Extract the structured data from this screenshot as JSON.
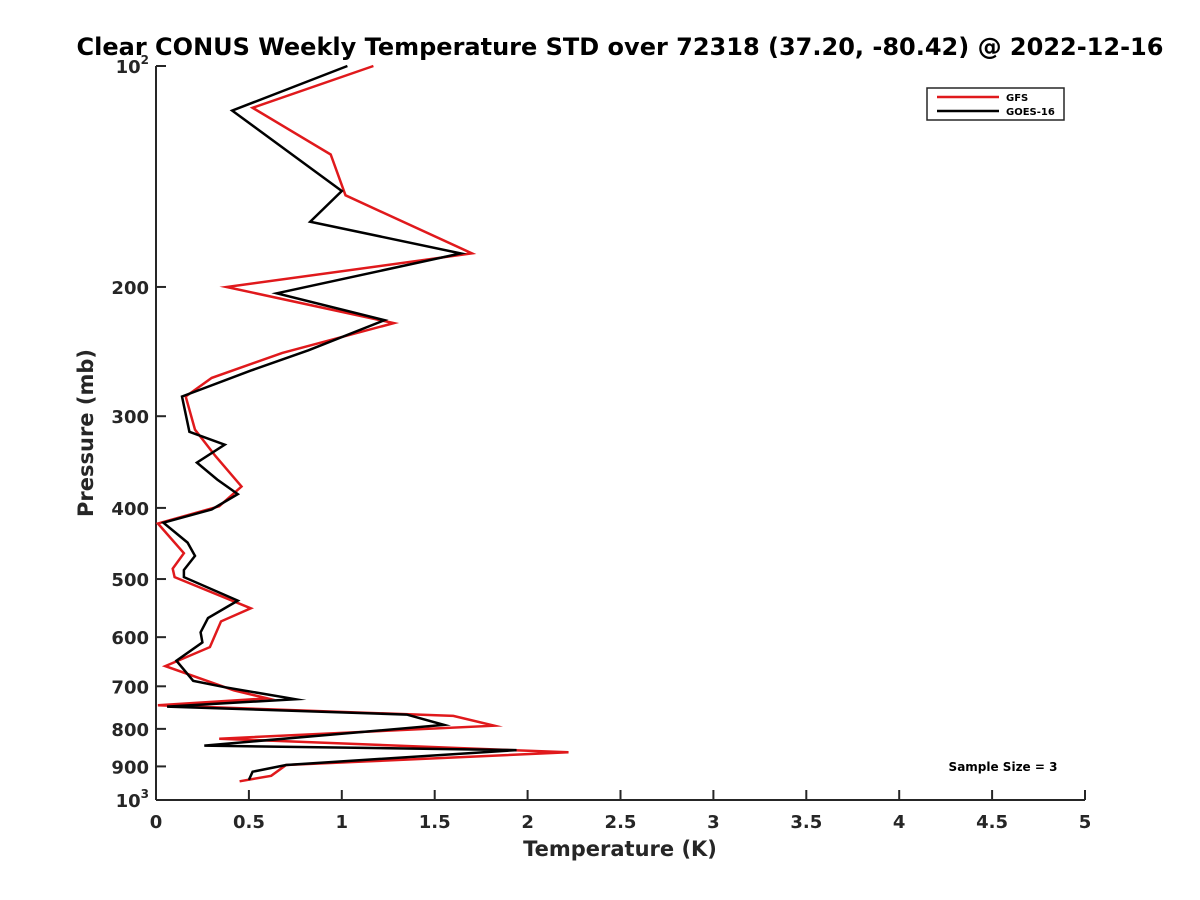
{
  "chart_data": {
    "type": "line",
    "title": "Clear CONUS Weekly Temperature STD over 72318 (37.20, -80.42) @ 2022-12-16",
    "xlabel": "Temperature (K)",
    "ylabel": "Pressure (mb)",
    "xlim": [
      0,
      5
    ],
    "ylim": [
      100,
      1000
    ],
    "y_scale": "log",
    "y_reversed": true,
    "grid": false,
    "x_ticks": [
      0,
      0.5,
      1,
      1.5,
      2,
      2.5,
      3,
      3.5,
      4,
      4.5,
      5
    ],
    "x_tick_labels": [
      "0",
      "0.5",
      "1",
      "1.5",
      "2",
      "2.5",
      "3",
      "3.5",
      "4",
      "4.5",
      "5"
    ],
    "y_ticks": [
      100,
      200,
      300,
      400,
      500,
      600,
      700,
      800,
      900,
      1000
    ],
    "y_tick_labels": [
      {
        "base": "10",
        "exp": "2"
      },
      {
        "base": "200",
        "exp": ""
      },
      {
        "base": "300",
        "exp": ""
      },
      {
        "base": "400",
        "exp": ""
      },
      {
        "base": "500",
        "exp": ""
      },
      {
        "base": "600",
        "exp": ""
      },
      {
        "base": "700",
        "exp": ""
      },
      {
        "base": "800",
        "exp": ""
      },
      {
        "base": "900",
        "exp": ""
      },
      {
        "base": "10",
        "exp": "3"
      }
    ],
    "legend": {
      "position": "top-right"
    },
    "annotation": "Sample Size = 3",
    "series": [
      {
        "name": "GFS",
        "color": "#e0191c",
        "points": [
          [
            1.17,
            100
          ],
          [
            0.52,
            114
          ],
          [
            0.94,
            132
          ],
          [
            1.02,
            150
          ],
          [
            1.7,
            180
          ],
          [
            0.38,
            200
          ],
          [
            1.28,
            224
          ],
          [
            0.68,
            246
          ],
          [
            0.3,
            266
          ],
          [
            0.16,
            282
          ],
          [
            0.21,
            313
          ],
          [
            0.32,
            340
          ],
          [
            0.46,
            374
          ],
          [
            0.34,
            398
          ],
          [
            0.01,
            420
          ],
          [
            0.15,
            461
          ],
          [
            0.09,
            484
          ],
          [
            0.1,
            497
          ],
          [
            0.51,
            548
          ],
          [
            0.35,
            571
          ],
          [
            0.29,
            619
          ],
          [
            0.05,
            657
          ],
          [
            0.42,
            709
          ],
          [
            0.6,
            727
          ],
          [
            0.01,
            743
          ],
          [
            1.6,
            768
          ],
          [
            1.82,
            792
          ],
          [
            0.34,
            825
          ],
          [
            2.22,
            861
          ],
          [
            0.7,
            896
          ],
          [
            0.62,
            927
          ],
          [
            0.45,
            943
          ]
        ]
      },
      {
        "name": "GOES-16",
        "color": "#000000",
        "points": [
          [
            1.03,
            100
          ],
          [
            0.41,
            115
          ],
          [
            1.0,
            148
          ],
          [
            0.83,
            163
          ],
          [
            1.64,
            180
          ],
          [
            0.65,
            204
          ],
          [
            1.23,
            222
          ],
          [
            0.82,
            244
          ],
          [
            0.51,
            260
          ],
          [
            0.14,
            282
          ],
          [
            0.18,
            315
          ],
          [
            0.37,
            328
          ],
          [
            0.22,
            347
          ],
          [
            0.33,
            366
          ],
          [
            0.44,
            383
          ],
          [
            0.3,
            402
          ],
          [
            0.04,
            419
          ],
          [
            0.17,
            446
          ],
          [
            0.21,
            465
          ],
          [
            0.15,
            486
          ],
          [
            0.15,
            497
          ],
          [
            0.44,
            535
          ],
          [
            0.28,
            565
          ],
          [
            0.24,
            591
          ],
          [
            0.25,
            610
          ],
          [
            0.11,
            646
          ],
          [
            0.2,
            688
          ],
          [
            0.37,
            702
          ],
          [
            0.75,
            729
          ],
          [
            0.06,
            746
          ],
          [
            1.35,
            765
          ],
          [
            1.55,
            790
          ],
          [
            0.26,
            843
          ],
          [
            1.94,
            855
          ],
          [
            0.7,
            896
          ],
          [
            0.52,
            915
          ],
          [
            0.5,
            939
          ]
        ]
      }
    ]
  }
}
